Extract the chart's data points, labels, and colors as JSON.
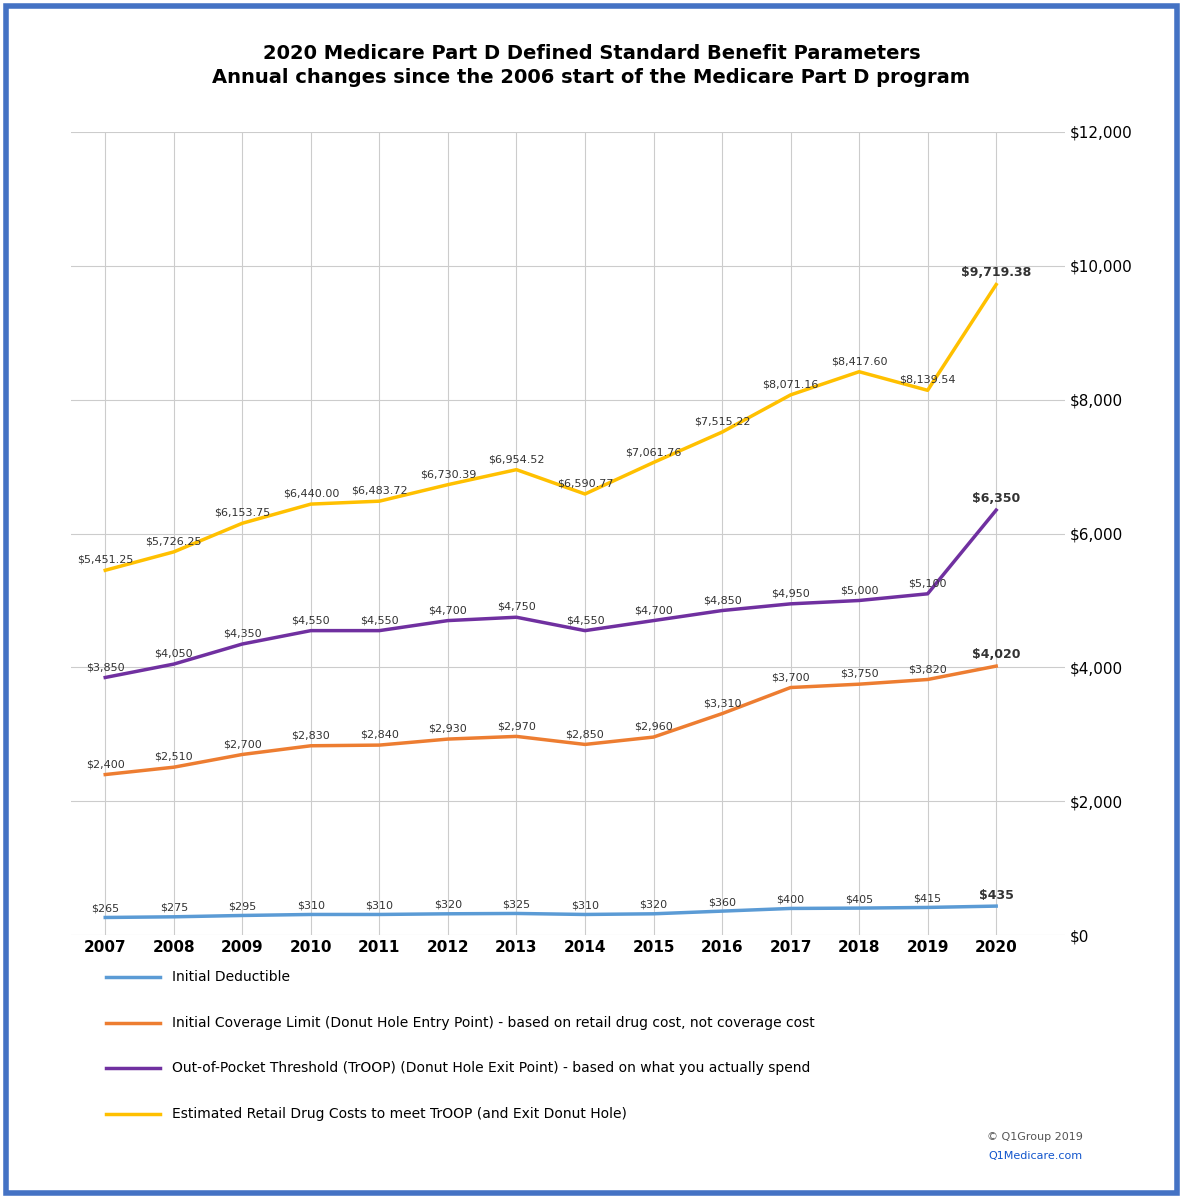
{
  "title_line1": "2020 Medicare Part D Defined Standard Benefit Parameters",
  "title_line2": "Annual changes since the 2006 start of the Medicare Part D program",
  "years": [
    2007,
    2008,
    2009,
    2010,
    2011,
    2012,
    2013,
    2014,
    2015,
    2016,
    2017,
    2018,
    2019,
    2020
  ],
  "deductible": [
    265,
    275,
    295,
    310,
    310,
    320,
    325,
    310,
    320,
    360,
    400,
    405,
    415,
    435
  ],
  "icl": [
    2400,
    2510,
    2700,
    2830,
    2840,
    2930,
    2970,
    2850,
    2960,
    3310,
    3700,
    3750,
    3820,
    4020
  ],
  "troop": [
    3850,
    4050,
    4350,
    4550,
    4550,
    4700,
    4750,
    4550,
    4700,
    4850,
    4950,
    5000,
    5100,
    6350
  ],
  "retail": [
    5451.25,
    5726.25,
    6153.75,
    6440.0,
    6483.72,
    6730.39,
    6954.52,
    6590.77,
    7061.76,
    7515.22,
    8071.16,
    8417.6,
    8139.54,
    9719.38
  ],
  "deductible_labels": [
    "$265",
    "$275",
    "$295",
    "$310",
    "$310",
    "$320",
    "$325",
    "$310",
    "$320",
    "$360",
    "$400",
    "$405",
    "$415",
    "$435"
  ],
  "icl_labels": [
    "$2,400",
    "$2,510",
    "$2,700",
    "$2,830",
    "$2,840",
    "$2,930",
    "$2,970",
    "$2,850",
    "$2,960",
    "$3,310",
    "$3,700",
    "$3,750",
    "$3,820",
    "$4,020"
  ],
  "troop_labels": [
    "$3,850",
    "$4,050",
    "$4,350",
    "$4,550",
    "$4,550",
    "$4,700",
    "$4,750",
    "$4,550",
    "$4,700",
    "$4,850",
    "$4,950",
    "$5,000",
    "$5,100",
    "$6,350"
  ],
  "retail_labels": [
    "$5,451.25",
    "$5,726.25",
    "$6,153.75",
    "$6,440.00",
    "$6,483.72",
    "$6,730.39",
    "$6,954.52",
    "$6,590.77",
    "$7,061.76",
    "$7,515.22",
    "$8,071.16",
    "$8,417.60",
    "$8,139.54",
    "$9,719.38"
  ],
  "deductible_bold": [
    false,
    false,
    false,
    false,
    false,
    false,
    false,
    false,
    false,
    false,
    false,
    false,
    false,
    true
  ],
  "icl_bold": [
    false,
    false,
    false,
    false,
    false,
    false,
    false,
    false,
    false,
    false,
    false,
    false,
    false,
    true
  ],
  "troop_bold": [
    false,
    false,
    false,
    false,
    false,
    false,
    false,
    false,
    false,
    false,
    false,
    false,
    false,
    true
  ],
  "retail_bold": [
    false,
    false,
    false,
    false,
    false,
    false,
    false,
    false,
    false,
    false,
    false,
    false,
    false,
    true
  ],
  "color_deductible": "#5B9BD5",
  "color_icl": "#ED7D31",
  "color_troop": "#7030A0",
  "color_yellow": "#FFC000",
  "ylim": [
    0,
    12000
  ],
  "yticks": [
    0,
    2000,
    4000,
    6000,
    8000,
    10000,
    12000
  ],
  "legend_deductible": "Initial Deductible",
  "legend_icl": "Initial Coverage Limit (Donut Hole Entry Point) - based on retail drug cost, not coverage cost",
  "legend_troop": "Out-of-Pocket Threshold (TrOOP) (Donut Hole Exit Point) - based on what you actually spend",
  "legend_retail": "Estimated Retail Drug Costs to meet TrOOP (and Exit Donut Hole)",
  "copyright": "© Q1Group 2019",
  "website": "Q1Medicare.com",
  "background_color": "#FFFFFF",
  "border_color": "#4472C4",
  "grid_color": "#CCCCCC",
  "label_color": "#333333",
  "label_fontsize": 8,
  "label_last_fontsize": 9,
  "line_width": 2.5
}
